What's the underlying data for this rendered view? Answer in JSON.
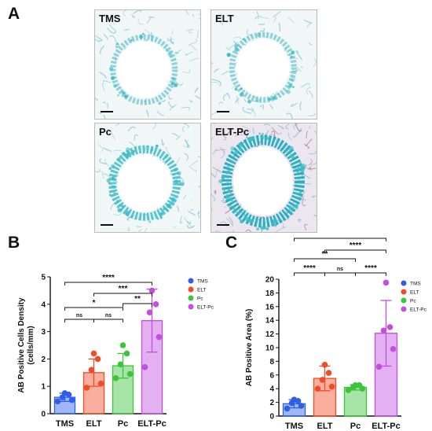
{
  "panels": {
    "a": "A",
    "b": "B",
    "c": "C"
  },
  "micrographs": [
    {
      "label": "TMS",
      "style": "light"
    },
    {
      "label": "ELT",
      "style": "light"
    },
    {
      "label": "Pc",
      "style": "medium"
    },
    {
      "label": "ELT-Pc",
      "style": "dense"
    }
  ],
  "colors": {
    "TMS": "#2f5fe8",
    "ELT": "#f24b28",
    "Pc": "#3cc43c",
    "ELT-Pc": "#c24fe0",
    "stain": "#3fbcc4"
  },
  "chart_data": [
    {
      "type": "bar",
      "categories": [
        "TMS",
        "ELT",
        "Pc",
        "ELT-Pc"
      ],
      "ylabel": "AB Positive Cells Density (cells/mm)",
      "ylabel_lines": [
        "AB Positive Cells Density",
        "(cells/mm)"
      ],
      "ylim": [
        0,
        5
      ],
      "yticks": [
        0,
        1,
        2,
        3,
        4,
        5
      ],
      "values": [
        0.6,
        1.5,
        1.75,
        3.4
      ],
      "errors": [
        0.15,
        0.5,
        0.45,
        1.15
      ],
      "points": [
        [
          0.45,
          0.5,
          0.6,
          0.7,
          0.75
        ],
        [
          0.95,
          1.1,
          1.6,
          2.0,
          2.2
        ],
        [
          1.3,
          1.45,
          1.8,
          2.2,
          2.5
        ],
        [
          1.7,
          2.8,
          3.7,
          4.0,
          4.5
        ]
      ],
      "legend": [
        "TMS",
        "ELT",
        "Pc",
        "ELT-Pc"
      ],
      "significance": [
        {
          "from": "TMS",
          "to": "ELT",
          "label": "ns"
        },
        {
          "from": "ELT",
          "to": "Pc",
          "label": "ns"
        },
        {
          "from": "TMS",
          "to": "Pc",
          "label": "*"
        },
        {
          "from": "Pc",
          "to": "ELT-Pc",
          "label": "**"
        },
        {
          "from": "ELT",
          "to": "ELT-Pc",
          "label": "***"
        },
        {
          "from": "TMS",
          "to": "ELT-Pc",
          "label": "****"
        }
      ]
    },
    {
      "type": "bar",
      "categories": [
        "TMS",
        "ELT",
        "Pc",
        "ELT-Pc"
      ],
      "ylabel": "AB Positive Area (%)",
      "ylim": [
        0,
        20
      ],
      "yticks": [
        0,
        2,
        4,
        6,
        8,
        10,
        12,
        14,
        16,
        18,
        20
      ],
      "values": [
        1.8,
        5.5,
        4.2,
        12.1
      ],
      "errors": [
        0.6,
        1.8,
        0.4,
        4.8
      ],
      "points": [
        [
          1.1,
          1.5,
          1.9,
          2.2,
          2.4
        ],
        [
          4.0,
          4.3,
          5.3,
          6.3,
          7.5
        ],
        [
          3.8,
          4.0,
          4.2,
          4.5,
          4.5
        ],
        [
          7.2,
          9.8,
          12.5,
          13.0,
          19.5
        ]
      ],
      "legend": [
        "TMS",
        "ELT",
        "Pc",
        "ELT-Pc"
      ],
      "significance": [
        {
          "from": "TMS",
          "to": "ELT",
          "label": "****"
        },
        {
          "from": "ELT",
          "to": "Pc",
          "label": "ns"
        },
        {
          "from": "Pc",
          "to": "ELT-Pc",
          "label": "****"
        },
        {
          "from": "TMS",
          "to": "Pc",
          "label": "**"
        },
        {
          "from": "ELT",
          "to": "ELT-Pc",
          "label": "****"
        },
        {
          "from": "TMS",
          "to": "ELT-Pc",
          "label": "****"
        }
      ]
    }
  ]
}
